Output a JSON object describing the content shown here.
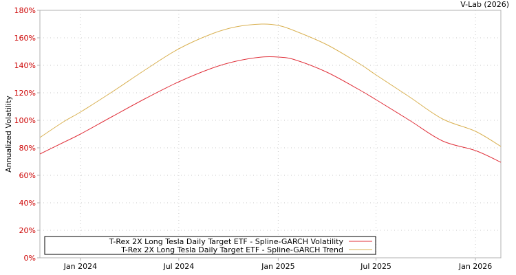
{
  "chart_data": {
    "type": "line",
    "credit": "V-Lab (2026)",
    "ylabel": "Annualized Volatility",
    "xlabel": "",
    "ylim": [
      0,
      180
    ],
    "y_ticks": [
      0,
      20,
      40,
      60,
      80,
      100,
      120,
      140,
      160,
      180
    ],
    "y_tick_labels": [
      "0%",
      "20%",
      "40%",
      "60%",
      "80%",
      "100%",
      "120%",
      "140%",
      "160%",
      "180%"
    ],
    "x_range": [
      "2023-10-18",
      "2026-02-17"
    ],
    "x_ticks": [
      "2024-01-01",
      "2024-07-01",
      "2025-01-01",
      "2025-07-01",
      "2026-01-01"
    ],
    "x_tick_labels": [
      "Jan 2024",
      "Jul 2024",
      "Jan 2025",
      "Jul 2025",
      "Jan 2026"
    ],
    "grid": true,
    "legend_position": "bottom-left",
    "series": [
      {
        "name": "T-Rex 2X Long Tesla Daily Target ETF - Spline-GARCH Volatility",
        "color": "#e0303a",
        "x": [
          "2023-10-18",
          "2023-12-01",
          "2024-01-01",
          "2024-03-01",
          "2024-05-01",
          "2024-07-01",
          "2024-09-01",
          "2024-10-15",
          "2024-12-01",
          "2025-01-01",
          "2025-02-01",
          "2025-04-01",
          "2025-06-01",
          "2025-07-01",
          "2025-09-01",
          "2025-11-01",
          "2026-01-01",
          "2026-02-17"
        ],
        "values": [
          75.5,
          84,
          90,
          103,
          116,
          128,
          138,
          143,
          146,
          146,
          144,
          135,
          122,
          115,
          100,
          85,
          78,
          69.5
        ]
      },
      {
        "name": "T-Rex 2X Long Tesla Daily Target ETF - Spline-GARCH Trend",
        "color": "#d9b050",
        "x": [
          "2023-10-18",
          "2023-12-01",
          "2024-01-01",
          "2024-03-01",
          "2024-05-01",
          "2024-07-01",
          "2024-09-01",
          "2024-10-15",
          "2024-12-01",
          "2025-01-01",
          "2025-02-01",
          "2025-04-01",
          "2025-06-01",
          "2025-07-01",
          "2025-09-01",
          "2025-11-01",
          "2026-01-01",
          "2026-02-17"
        ],
        "values": [
          87.5,
          99,
          106,
          121,
          137,
          152,
          163,
          168,
          170,
          169,
          165,
          155,
          141,
          133,
          117,
          101,
          92,
          81
        ]
      }
    ]
  }
}
